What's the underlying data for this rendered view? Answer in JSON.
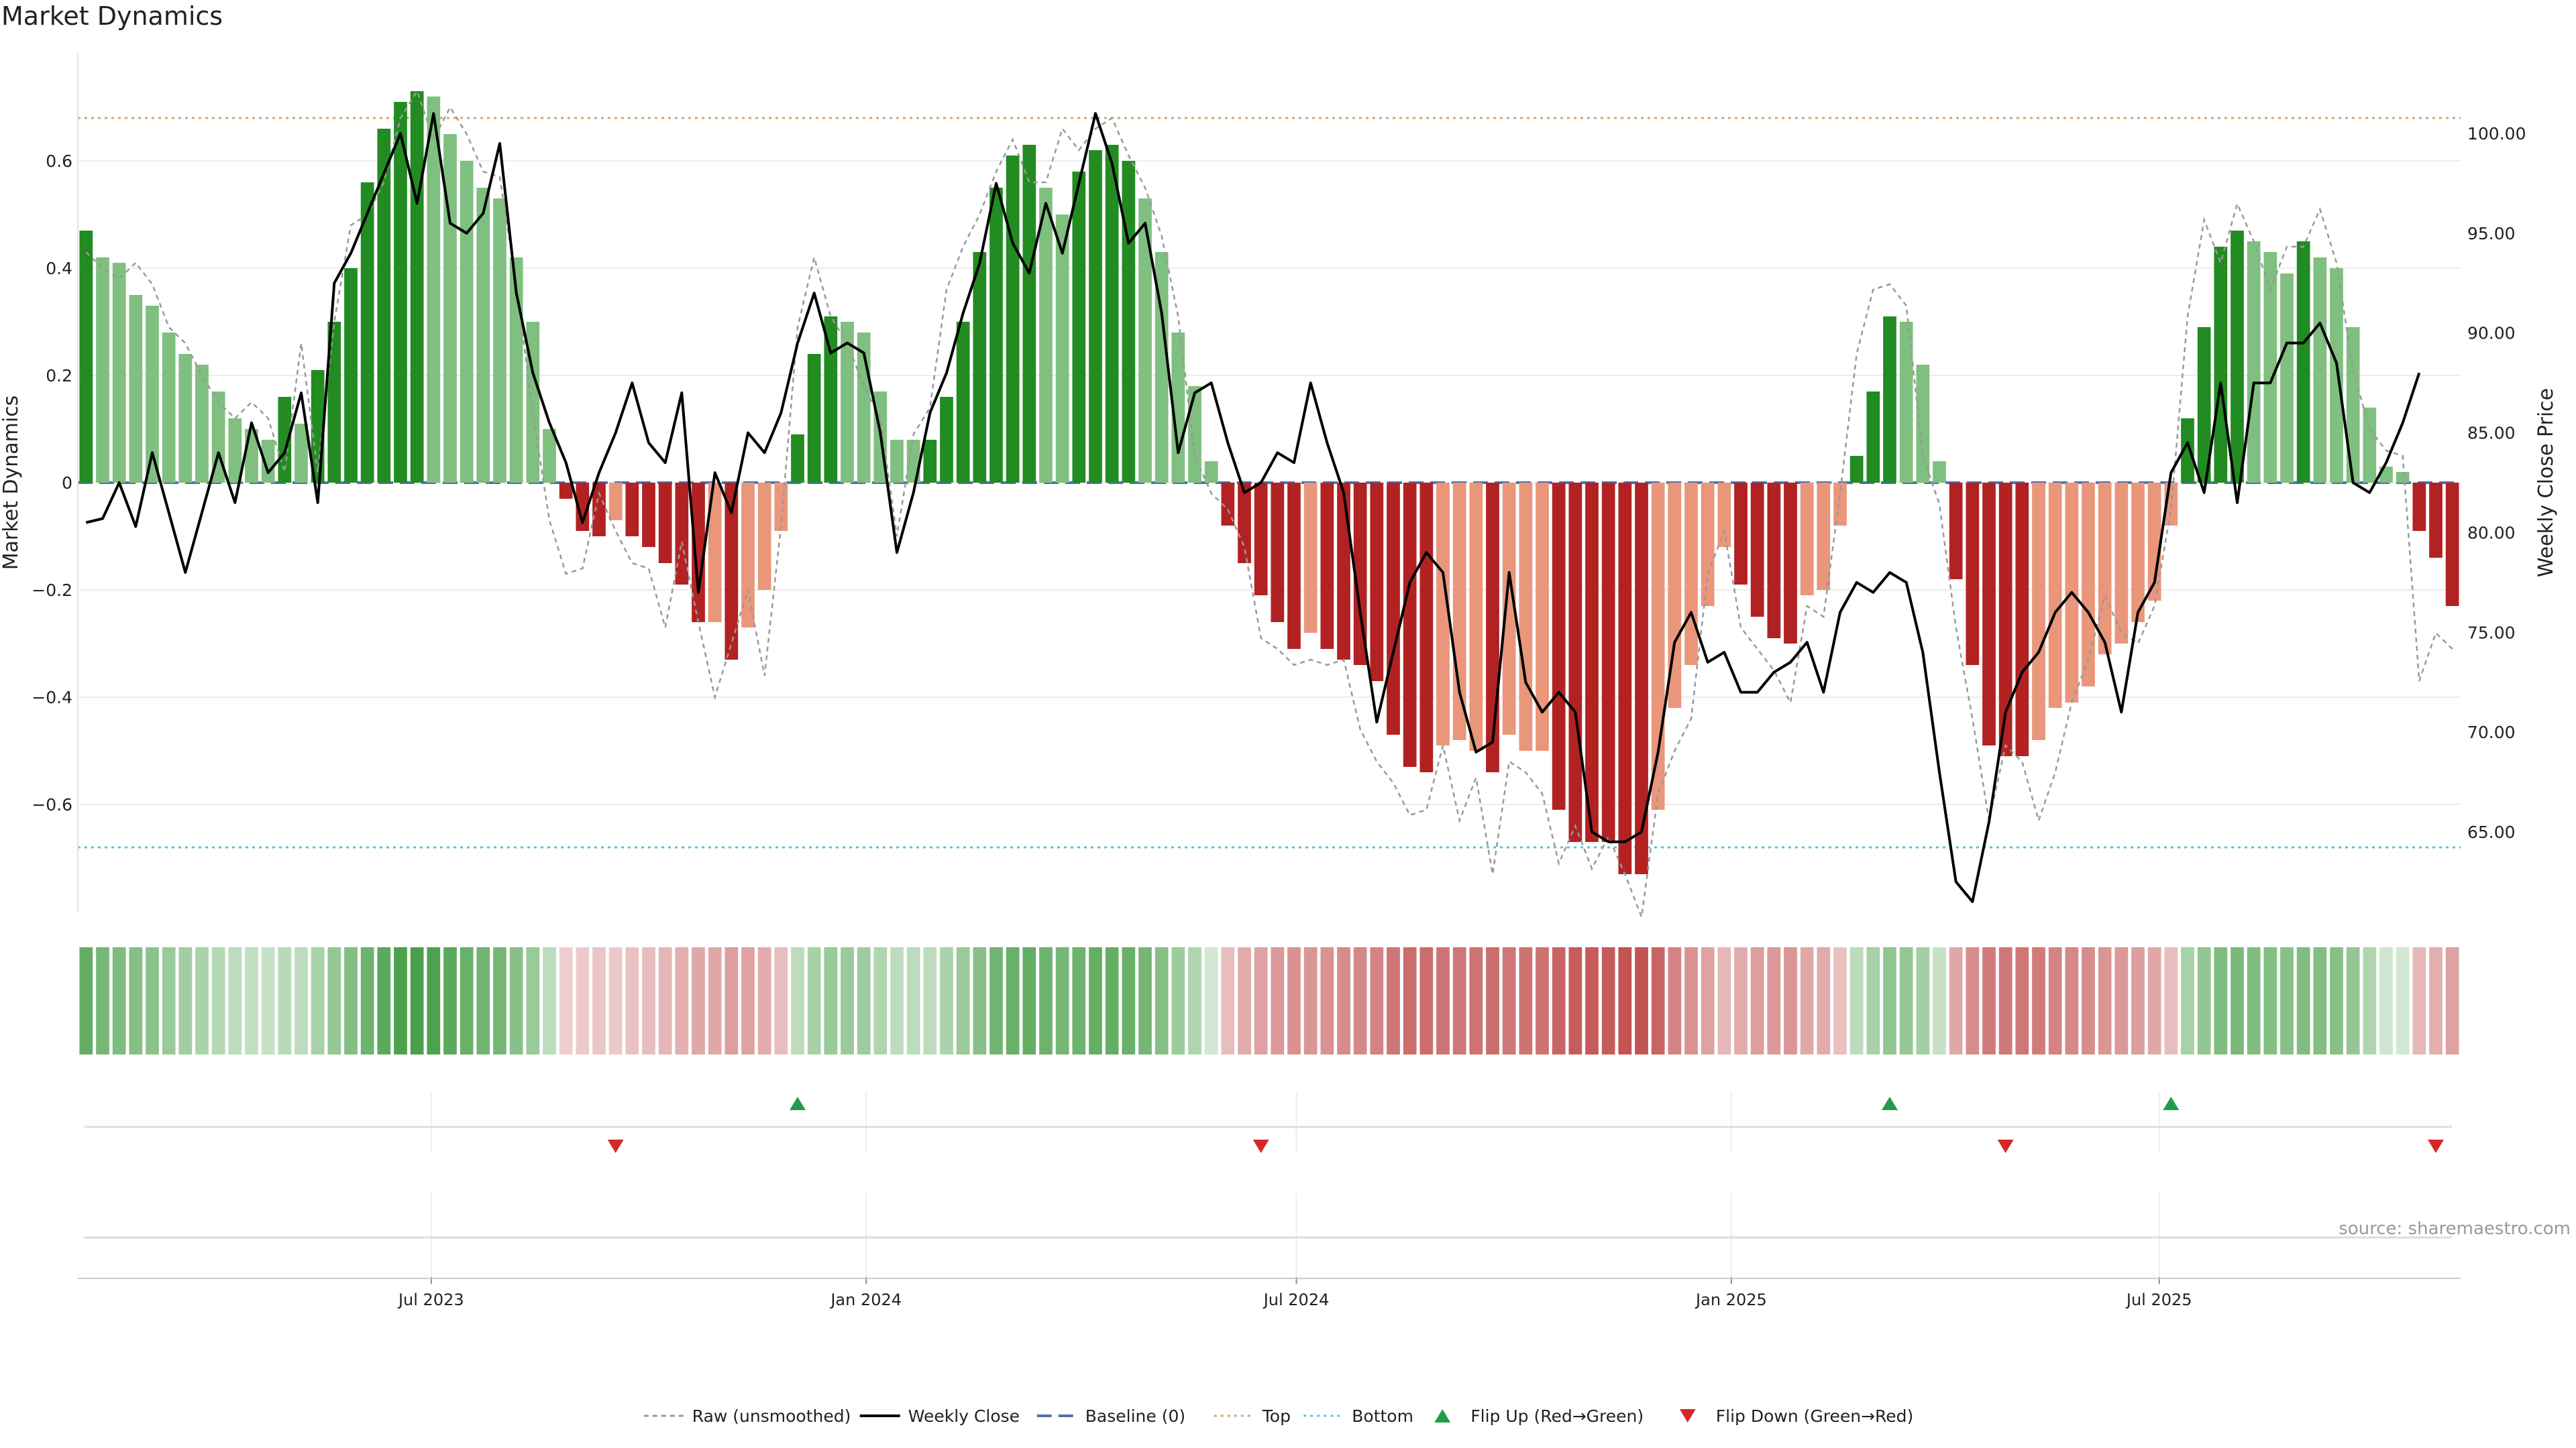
{
  "title": "Market Dynamics",
  "source": "source: sharemaestro.com",
  "chart_data": {
    "type": "bar",
    "y_left_label": "Market Dynamics",
    "y_right_label": "Weekly Close Price",
    "y_left_ticks": [
      "0.6",
      "0.4",
      "0.2",
      "0",
      "−0.2",
      "−0.4",
      "−0.6"
    ],
    "y_left_tick_values": [
      0.6,
      0.4,
      0.2,
      0,
      -0.2,
      -0.4,
      -0.6
    ],
    "y_left_range": [
      -0.8,
      0.8
    ],
    "y_right_ticks": [
      "100.00",
      "95.00",
      "90.00",
      "85.00",
      "80.00",
      "75.00",
      "70.00",
      "65.00"
    ],
    "y_right_tick_values": [
      100,
      95,
      90,
      85,
      80,
      75,
      70,
      65
    ],
    "y_right_range": [
      61,
      104
    ],
    "top_level": 0.68,
    "bottom_level": -0.68,
    "x_tick_labels": [
      "Jul 2023",
      "Jan 2024",
      "Jul 2024",
      "Jan 2025",
      "Jul 2025"
    ],
    "x_tick_dates": [
      "2023-07-01",
      "2024-01-01",
      "2024-07-01",
      "2025-01-01",
      "2025-07-01"
    ],
    "start_date": "2023-02-05",
    "bar_values": [
      0.47,
      0.42,
      0.41,
      0.35,
      0.33,
      0.28,
      0.24,
      0.22,
      0.17,
      0.12,
      0.1,
      0.08,
      0.16,
      0.11,
      0.21,
      0.3,
      0.4,
      0.56,
      0.66,
      0.71,
      0.73,
      0.72,
      0.65,
      0.6,
      0.55,
      0.53,
      0.42,
      0.3,
      0.1,
      -0.03,
      -0.09,
      -0.1,
      -0.07,
      -0.1,
      -0.12,
      -0.15,
      -0.19,
      -0.26,
      -0.26,
      -0.33,
      -0.27,
      -0.2,
      -0.09,
      0.09,
      0.24,
      0.31,
      0.3,
      0.28,
      0.17,
      0.08,
      0.08,
      0.08,
      0.16,
      0.3,
      0.43,
      0.55,
      0.61,
      0.63,
      0.55,
      0.5,
      0.58,
      0.62,
      0.63,
      0.6,
      0.53,
      0.43,
      0.28,
      0.18,
      0.04,
      -0.08,
      -0.15,
      -0.21,
      -0.26,
      -0.31,
      -0.28,
      -0.31,
      -0.33,
      -0.34,
      -0.37,
      -0.47,
      -0.53,
      -0.54,
      -0.49,
      -0.48,
      -0.5,
      -0.54,
      -0.47,
      -0.5,
      -0.5,
      -0.61,
      -0.67,
      -0.67,
      -0.67,
      -0.73,
      -0.73,
      -0.61,
      -0.42,
      -0.34,
      -0.23,
      -0.12,
      -0.19,
      -0.25,
      -0.29,
      -0.3,
      -0.21,
      -0.2,
      -0.08,
      0.05,
      0.17,
      0.31,
      0.3,
      0.22,
      0.04,
      -0.18,
      -0.34,
      -0.49,
      -0.51,
      -0.51,
      -0.48,
      -0.42,
      -0.41,
      -0.38,
      -0.32,
      -0.3,
      -0.26,
      -0.22,
      -0.08,
      0.12,
      0.29,
      0.44,
      0.47,
      0.45,
      0.43,
      0.39,
      0.45,
      0.42,
      0.4,
      0.29,
      0.14,
      0.03,
      0.02,
      -0.09,
      -0.14,
      -0.23
    ],
    "bar_strength": [
      1,
      0,
      0,
      0,
      0,
      0,
      0,
      0,
      0,
      0,
      0,
      0,
      1,
      0,
      1,
      1,
      1,
      1,
      1,
      1,
      1,
      0,
      0,
      0,
      0,
      0,
      0,
      0,
      0,
      1,
      1,
      1,
      0,
      1,
      1,
      1,
      1,
      1,
      0,
      1,
      0,
      0,
      0,
      1,
      1,
      1,
      0,
      0,
      0,
      0,
      0,
      1,
      1,
      1,
      1,
      1,
      1,
      1,
      0,
      0,
      1,
      1,
      1,
      1,
      0,
      0,
      0,
      0,
      0,
      1,
      1,
      1,
      1,
      1,
      0,
      1,
      1,
      1,
      1,
      1,
      1,
      1,
      0,
      0,
      0,
      1,
      0,
      0,
      0,
      1,
      1,
      1,
      1,
      1,
      1,
      0,
      0,
      0,
      0,
      0,
      1,
      1,
      1,
      1,
      0,
      0,
      0,
      1,
      1,
      1,
      0,
      0,
      0,
      1,
      1,
      1,
      1,
      1,
      0,
      0,
      0,
      0,
      0,
      0,
      0,
      0,
      0,
      1,
      1,
      1,
      1,
      0,
      0,
      0,
      1,
      0,
      0,
      0,
      0,
      0,
      0,
      1,
      1,
      1
    ],
    "weekly_close": [
      80.5,
      80.7,
      82.5,
      80.3,
      84.0,
      81.0,
      78.0,
      81.0,
      84.0,
      81.5,
      85.5,
      83.0,
      84.0,
      87.0,
      81.5,
      92.5,
      94.0,
      96.0,
      98.0,
      100.0,
      96.5,
      101.0,
      95.5,
      95.0,
      96.0,
      99.5,
      92.0,
      88.0,
      85.5,
      83.5,
      80.5,
      83.0,
      85.0,
      87.5,
      84.5,
      83.5,
      87.0,
      77.0,
      83.0,
      81.0,
      85.0,
      84.0,
      86.0,
      89.5,
      92.0,
      89.0,
      89.5,
      89.0,
      85.0,
      79.0,
      82.0,
      86.0,
      88.0,
      91.0,
      93.5,
      97.5,
      94.5,
      93.0,
      96.5,
      94.0,
      97.5,
      101.0,
      98.5,
      94.5,
      95.5,
      91.0,
      84.0,
      87.0,
      87.5,
      84.5,
      82.0,
      82.5,
      84.0,
      83.5,
      87.5,
      84.5,
      82.0,
      76.0,
      70.5,
      74.0,
      77.5,
      79.0,
      78.0,
      72.0,
      69.0,
      69.5,
      78.0,
      72.5,
      71.0,
      72.0,
      71.0,
      65.0,
      64.5,
      64.5,
      65.0,
      69.0,
      74.5,
      76.0,
      73.5,
      74.0,
      72.0,
      72.0,
      73.0,
      73.5,
      74.5,
      72.0,
      76.0,
      77.5,
      77.0,
      78.0,
      77.5,
      74.0,
      68.0,
      62.5,
      61.5,
      65.5,
      71.0,
      73.0,
      74.0,
      76.0,
      77.0,
      76.0,
      74.5,
      71.0,
      76.0,
      77.5,
      83.0,
      84.5,
      82.0,
      87.5,
      81.5,
      87.5,
      87.5,
      89.5,
      89.5,
      90.5,
      88.5,
      82.5,
      82.0,
      83.5,
      85.5,
      88.0
    ],
    "raw": [
      0.43,
      0.4,
      0.38,
      0.41,
      0.37,
      0.29,
      0.26,
      0.2,
      0.15,
      0.12,
      0.15,
      0.12,
      0.02,
      0.26,
      0.02,
      0.3,
      0.48,
      0.5,
      0.56,
      0.68,
      0.73,
      0.64,
      0.7,
      0.65,
      0.58,
      0.57,
      0.37,
      0.13,
      -0.07,
      -0.17,
      -0.16,
      -0.02,
      -0.09,
      -0.15,
      -0.16,
      -0.27,
      -0.11,
      -0.26,
      -0.4,
      -0.3,
      -0.2,
      -0.36,
      -0.08,
      0.29,
      0.42,
      0.31,
      0.26,
      0.18,
      0.12,
      -0.1,
      0.09,
      0.14,
      0.36,
      0.44,
      0.5,
      0.58,
      0.64,
      0.56,
      0.56,
      0.66,
      0.62,
      0.66,
      0.68,
      0.61,
      0.55,
      0.46,
      0.31,
      0.05,
      -0.02,
      -0.05,
      -0.12,
      -0.29,
      -0.31,
      -0.34,
      -0.33,
      -0.34,
      -0.33,
      -0.46,
      -0.52,
      -0.56,
      -0.62,
      -0.61,
      -0.49,
      -0.63,
      -0.55,
      -0.73,
      -0.52,
      -0.54,
      -0.58,
      -0.71,
      -0.64,
      -0.72,
      -0.66,
      -0.73,
      -0.81,
      -0.58,
      -0.5,
      -0.44,
      -0.17,
      -0.09,
      -0.27,
      -0.31,
      -0.35,
      -0.41,
      -0.23,
      -0.25,
      -0.02,
      0.24,
      0.36,
      0.37,
      0.33,
      0.05,
      -0.04,
      -0.27,
      -0.44,
      -0.63,
      -0.49,
      -0.52,
      -0.63,
      -0.54,
      -0.41,
      -0.33,
      -0.21,
      -0.28,
      -0.3,
      -0.23,
      -0.05,
      0.31,
      0.49,
      0.41,
      0.52,
      0.45,
      0.36,
      0.44,
      0.44,
      0.51,
      0.41,
      0.21,
      0.1,
      0.06,
      0.05,
      -0.37,
      -0.28,
      -0.31
    ],
    "strip_intensity": [
      0.7,
      0.62,
      0.58,
      0.55,
      0.52,
      0.46,
      0.42,
      0.38,
      0.34,
      0.3,
      0.28,
      0.26,
      0.32,
      0.3,
      0.4,
      0.48,
      0.56,
      0.66,
      0.74,
      0.8,
      0.82,
      0.8,
      0.74,
      0.68,
      0.64,
      0.62,
      0.54,
      0.46,
      0.3,
      0.22,
      0.24,
      0.26,
      0.25,
      0.28,
      0.3,
      0.33,
      0.36,
      0.4,
      0.4,
      0.44,
      0.42,
      0.38,
      0.3,
      0.3,
      0.4,
      0.46,
      0.46,
      0.44,
      0.36,
      0.3,
      0.3,
      0.3,
      0.38,
      0.46,
      0.54,
      0.64,
      0.68,
      0.7,
      0.66,
      0.62,
      0.66,
      0.7,
      0.7,
      0.68,
      0.62,
      0.55,
      0.45,
      0.36,
      0.2,
      0.3,
      0.38,
      0.42,
      0.46,
      0.5,
      0.48,
      0.5,
      0.52,
      0.54,
      0.56,
      0.62,
      0.66,
      0.66,
      0.63,
      0.62,
      0.64,
      0.66,
      0.62,
      0.64,
      0.64,
      0.7,
      0.74,
      0.74,
      0.74,
      0.78,
      0.78,
      0.7,
      0.56,
      0.5,
      0.42,
      0.32,
      0.38,
      0.44,
      0.46,
      0.48,
      0.4,
      0.38,
      0.28,
      0.3,
      0.4,
      0.5,
      0.48,
      0.42,
      0.26,
      0.4,
      0.52,
      0.6,
      0.62,
      0.62,
      0.6,
      0.56,
      0.54,
      0.52,
      0.48,
      0.46,
      0.44,
      0.4,
      0.3,
      0.4,
      0.5,
      0.58,
      0.6,
      0.58,
      0.56,
      0.54,
      0.58,
      0.56,
      0.54,
      0.48,
      0.36,
      0.22,
      0.2,
      0.32,
      0.36,
      0.42
    ],
    "flip_up_dates": [
      "2023-12-03",
      "2025-03-09",
      "2025-07-06"
    ],
    "flip_down_dates": [
      "2023-09-17",
      "2024-06-16",
      "2025-04-27",
      "2025-10-26"
    ],
    "colors": {
      "strong_green": "#228B22",
      "light_green": "#7FBF7F",
      "strong_red": "#B22222",
      "light_red": "#E9967A",
      "weekly_close": "#000000",
      "raw": "#999999",
      "baseline": "#4C72B0",
      "top": "#D2A679",
      "bottom": "#5BC0DE",
      "flip_up": "#1E9E4A",
      "flip_down": "#D62728"
    },
    "legend": [
      {
        "label": "Raw (unsmoothed)",
        "kind": "raw"
      },
      {
        "label": "Weekly Close",
        "kind": "close"
      },
      {
        "label": "Baseline (0)",
        "kind": "baseline"
      },
      {
        "label": "Top",
        "kind": "top"
      },
      {
        "label": "Bottom",
        "kind": "bottom"
      },
      {
        "label": "Flip Up (Red→Green)",
        "kind": "up"
      },
      {
        "label": "Flip Down (Green→Red)",
        "kind": "down"
      }
    ],
    "legend_placement": "bottom-center",
    "grid": true
  }
}
